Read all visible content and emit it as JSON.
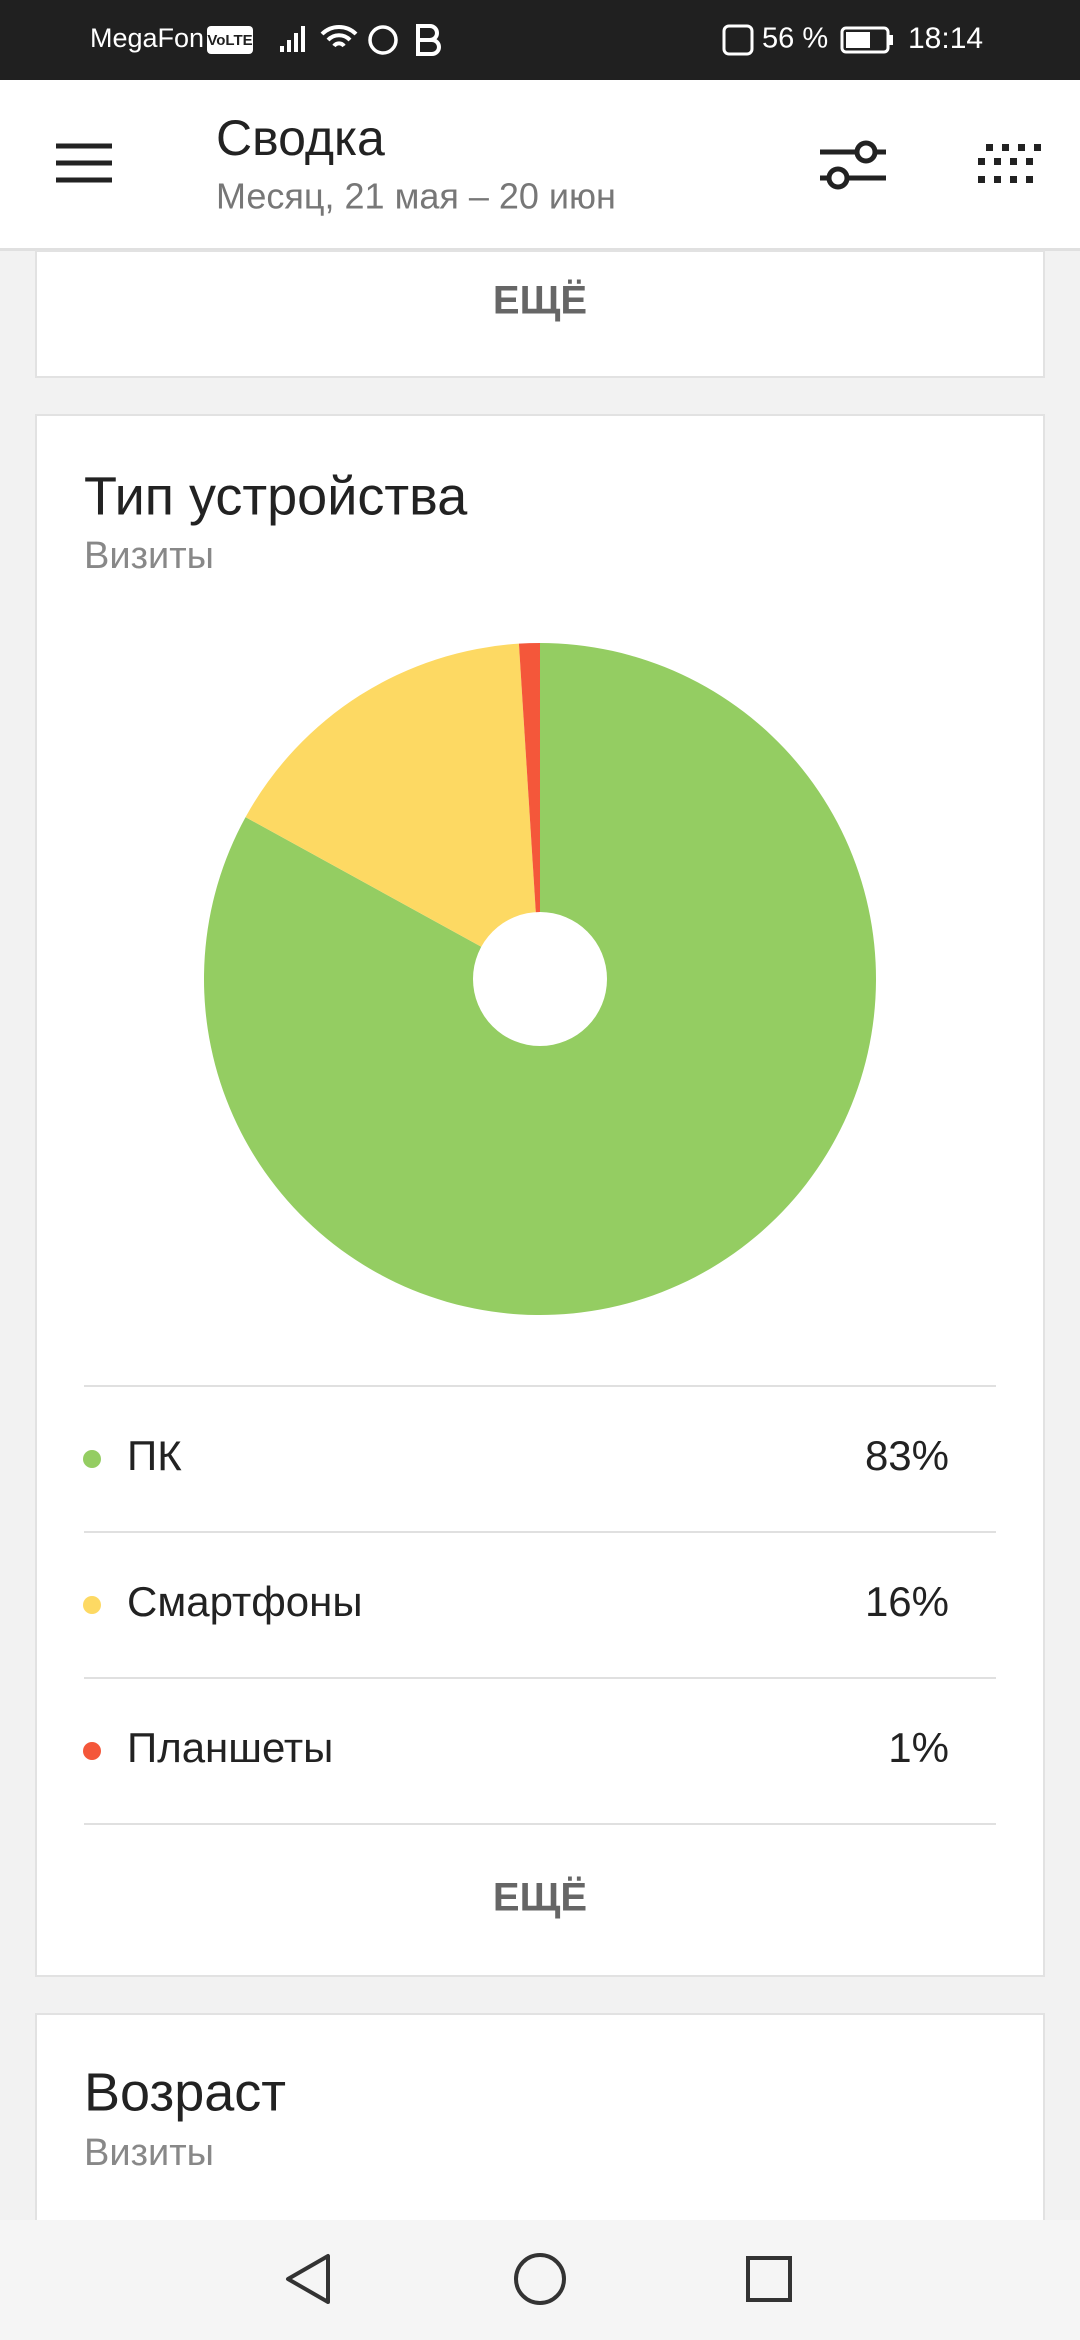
{
  "status_bar": {
    "carrier": "MegaFon",
    "volte": "VoLTE",
    "battery": "56 %",
    "time": "18:14"
  },
  "header": {
    "title": "Сводка",
    "subtitle": "Месяц, 21 мая – 20 июн"
  },
  "top_card": {
    "more": "ЕЩЁ"
  },
  "chart_data": {
    "type": "pie",
    "title": "Тип устройства",
    "subtitle": "Визиты",
    "categories": [
      "ПК",
      "Смартфоны",
      "Планшеты"
    ],
    "values": [
      83,
      16,
      1
    ],
    "value_labels": [
      "83%",
      "16%",
      "1%"
    ],
    "colors": [
      "#94cd62",
      "#fdd963",
      "#f4573a"
    ],
    "more": "ЕЩЁ"
  },
  "next_card": {
    "title": "Возраст",
    "subtitle": "Визиты"
  }
}
